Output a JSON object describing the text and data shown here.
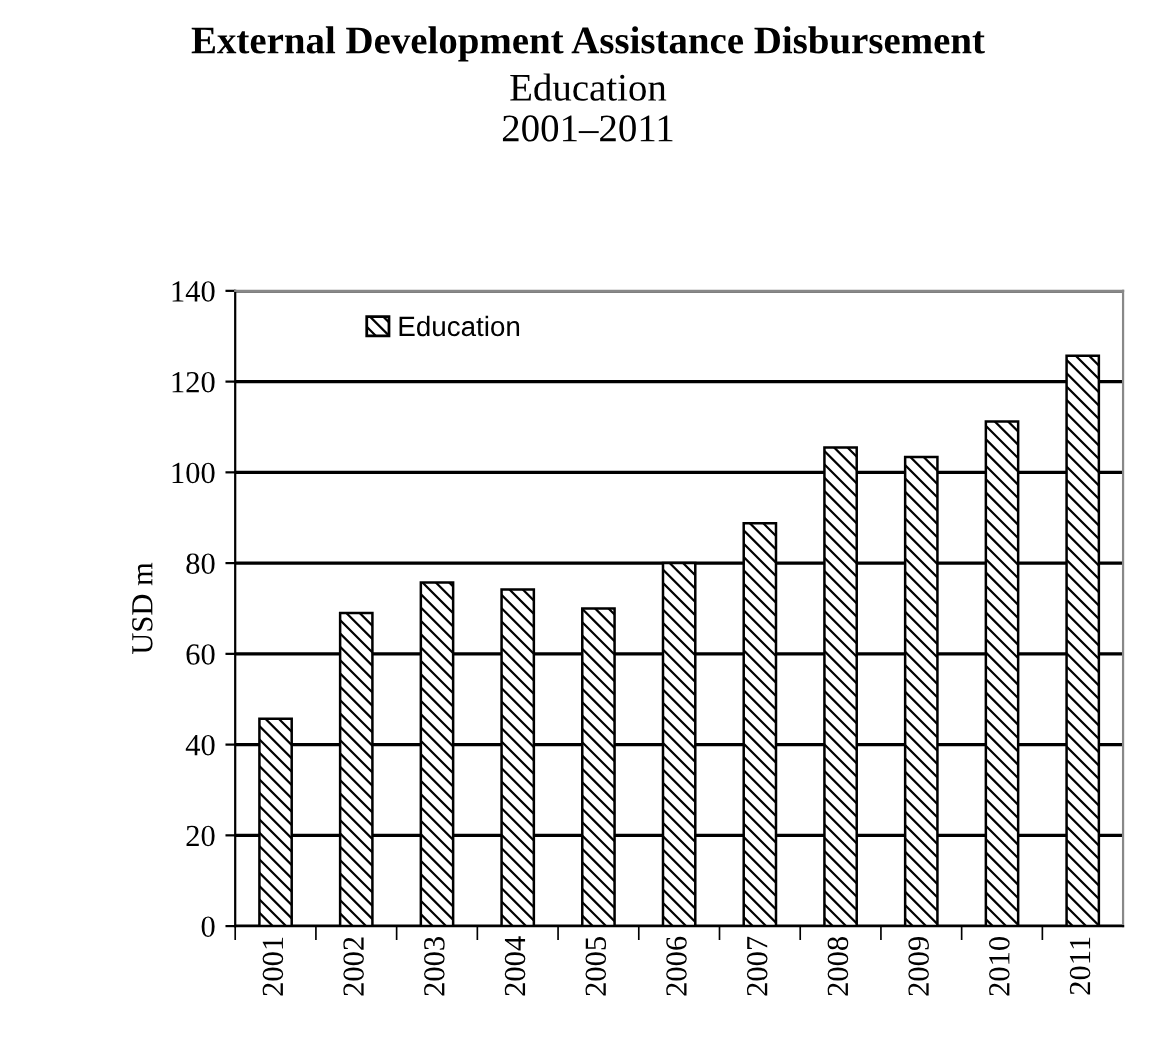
{
  "chart_data": {
    "type": "bar",
    "title": "External Development Assistance Disbursement",
    "subtitle": "Education\n2001–2011",
    "ylabel": "USD m",
    "categories": [
      "2001",
      "2002",
      "2003",
      "2004",
      "2005",
      "2006",
      "2007",
      "2008",
      "2009",
      "2010",
      "2011"
    ],
    "series": [
      {
        "name": "Education",
        "color": "#000000",
        "values": [
          45.7,
          69,
          75.7,
          74.2,
          70,
          80,
          88.8,
          105.5,
          103.4,
          111.2,
          125.7
        ]
      }
    ],
    "ylim": [
      0,
      140
    ],
    "yticks": [
      0,
      20,
      40,
      60,
      80,
      100,
      120,
      140
    ],
    "grid": "y",
    "legend": "top left"
  }
}
